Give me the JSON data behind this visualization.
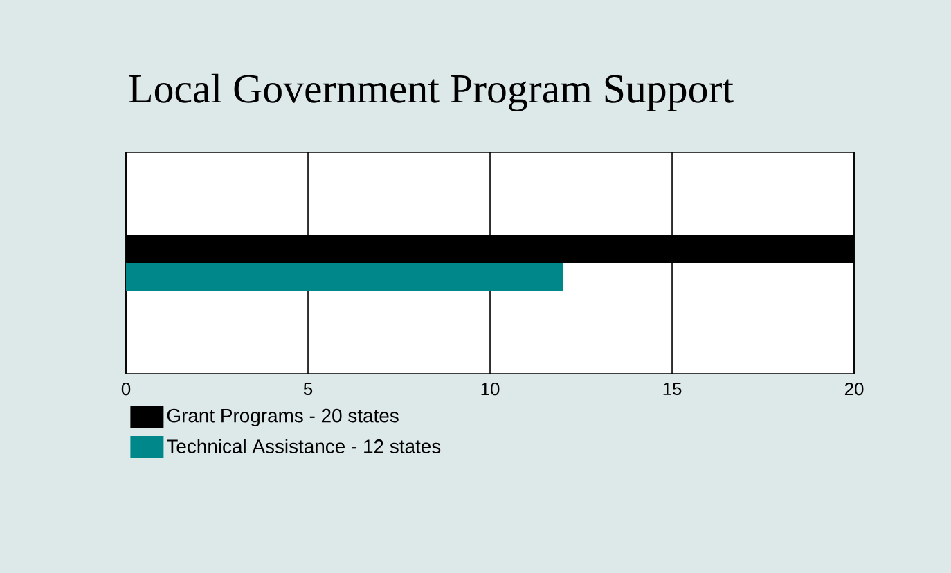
{
  "chart_data": {
    "type": "bar",
    "orientation": "horizontal",
    "title": "Local Government Program Support",
    "categories": [
      null
    ],
    "series": [
      {
        "name": "Grant Programs - 20 states",
        "color": "#000000",
        "values": [
          20
        ]
      },
      {
        "name": "Technical Assistance - 12 states",
        "color": "#00878a",
        "values": [
          12
        ]
      }
    ],
    "xlim": [
      0,
      20
    ],
    "xticks": [
      0,
      5,
      10,
      15,
      20
    ],
    "grid": "x",
    "legend": "bottom",
    "tick_labels": "x"
  }
}
